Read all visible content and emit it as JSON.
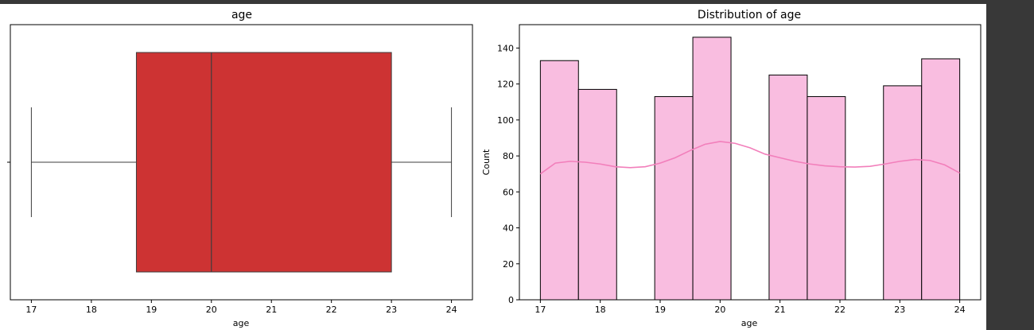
{
  "chart_data": [
    {
      "type": "box",
      "title": "age",
      "xlabel": "age",
      "ylabel": "",
      "xlim": [
        16.65,
        24.35
      ],
      "x_ticks": [
        17,
        18,
        19,
        20,
        21,
        22,
        23,
        24
      ],
      "box": {
        "whisker_low": 17,
        "q1": 18.75,
        "median": 20,
        "q3": 23,
        "whisker_high": 24
      },
      "color": "#cd3333",
      "edge_color": "#3d3d3d"
    },
    {
      "type": "histogram",
      "title": "Distribution of age",
      "xlabel": "age",
      "ylabel": "Count",
      "xlim": [
        16.65,
        24.35
      ],
      "ylim": [
        0,
        153
      ],
      "x_ticks": [
        17,
        18,
        19,
        20,
        21,
        22,
        23,
        24
      ],
      "y_ticks": [
        0,
        20,
        40,
        60,
        80,
        100,
        120,
        140
      ],
      "bins": [
        {
          "start": 17.0,
          "end": 17.636,
          "count": 133
        },
        {
          "start": 17.636,
          "end": 18.273,
          "count": 117
        },
        {
          "start": 18.273,
          "end": 18.909,
          "count": 0
        },
        {
          "start": 18.909,
          "end": 19.545,
          "count": 113
        },
        {
          "start": 19.545,
          "end": 20.182,
          "count": 146
        },
        {
          "start": 20.182,
          "end": 20.818,
          "count": 0
        },
        {
          "start": 20.818,
          "end": 21.455,
          "count": 125
        },
        {
          "start": 21.455,
          "end": 22.091,
          "count": 113
        },
        {
          "start": 22.091,
          "end": 22.727,
          "count": 0
        },
        {
          "start": 22.727,
          "end": 23.364,
          "count": 119
        },
        {
          "start": 23.364,
          "end": 24.0,
          "count": 134
        }
      ],
      "kde": {
        "x": [
          17.0,
          17.25,
          17.5,
          17.75,
          18.0,
          18.25,
          18.5,
          18.75,
          19.0,
          19.25,
          19.5,
          19.75,
          20.0,
          20.25,
          20.5,
          20.75,
          21.0,
          21.25,
          21.5,
          21.75,
          22.0,
          22.25,
          22.5,
          22.75,
          23.0,
          23.25,
          23.5,
          23.75,
          24.0
        ],
        "y": [
          70,
          76,
          77,
          76.5,
          75.5,
          74,
          73.5,
          74,
          76,
          79,
          83,
          86.5,
          88,
          87,
          84.5,
          81,
          79,
          77,
          75.5,
          74.5,
          74,
          73.8,
          74.2,
          75.5,
          77,
          78,
          77.5,
          75,
          70.5
        ]
      },
      "bar_color": "#f9bde0",
      "edge_color": "#000000",
      "kde_color": "#f27fbb"
    }
  ]
}
